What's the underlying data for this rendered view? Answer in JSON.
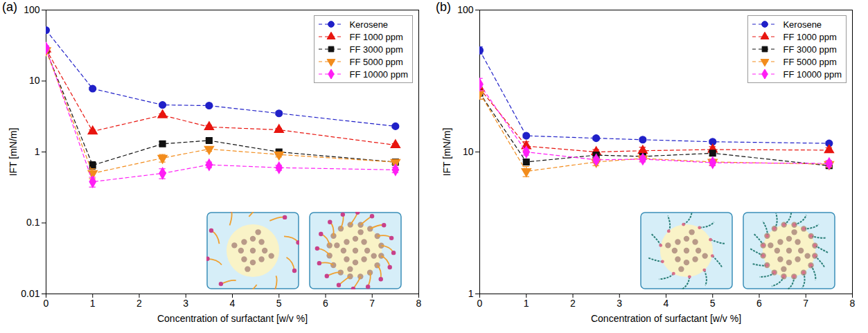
{
  "chart_data": [
    {
      "type": "line",
      "title": "(a)",
      "x_label": "Concentration of surfactant [w/v %]",
      "y_label": "IFT [mN/m]",
      "x": [
        0,
        1,
        2.5,
        3.5,
        5,
        7.5
      ],
      "xlim": [
        0,
        8
      ],
      "xticks": [
        0,
        1,
        2,
        3,
        4,
        5,
        6,
        7,
        8
      ],
      "ylim": [
        0.01,
        100
      ],
      "yticks": [
        0.01,
        0.1,
        1,
        10,
        100
      ],
      "log": "y",
      "grid": false,
      "legend": "upper right",
      "series": [
        {
          "name": "Kerosene",
          "color": "#2020c8",
          "marker": "circle",
          "line_style": "dashed",
          "values": [
            52,
            7.8,
            4.6,
            4.5,
            3.5,
            2.3
          ],
          "errors": [
            3,
            0.3,
            0.2,
            0.2,
            0.15,
            0.1
          ]
        },
        {
          "name": "FF 1000 ppm",
          "color": "#e8150f",
          "marker": "triangle",
          "line_style": "dashed",
          "values": [
            28,
            1.95,
            3.3,
            2.25,
            2.05,
            1.25
          ],
          "errors": [
            2.5,
            0.1,
            0.15,
            0.12,
            0.1,
            0.06
          ]
        },
        {
          "name": "FF 3000 ppm",
          "color": "#111111",
          "marker": "square",
          "line_style": "dashed",
          "values": [
            27,
            0.65,
            1.3,
            1.45,
            1.0,
            0.72
          ],
          "errors": [
            2.5,
            0.08,
            0.1,
            0.08,
            0.06,
            0.05
          ]
        },
        {
          "name": "FF 5000 ppm",
          "color": "#f28c1c",
          "marker": "triangle-down",
          "line_style": "dashed",
          "values": [
            27,
            0.5,
            0.82,
            1.1,
            0.92,
            0.72
          ],
          "errors": [
            2.5,
            0.08,
            0.1,
            0.08,
            0.07,
            0.05
          ]
        },
        {
          "name": "FF 10000 ppm",
          "color": "#ff1ef5",
          "marker": "diamond",
          "line_style": "dashed",
          "values": [
            29,
            0.38,
            0.5,
            0.66,
            0.6,
            0.56
          ],
          "errors": [
            2.5,
            0.06,
            0.08,
            0.06,
            0.05,
            0.05
          ]
        }
      ]
    },
    {
      "type": "line",
      "title": "(b)",
      "x_label": "Concentration of surfactant [w/v %]",
      "y_label": "IFT [mN/m]",
      "x": [
        0,
        1,
        2.5,
        3.5,
        5,
        7.5
      ],
      "xlim": [
        0,
        8
      ],
      "xticks": [
        0,
        1,
        2,
        3,
        4,
        5,
        6,
        7,
        8
      ],
      "ylim": [
        1,
        100
      ],
      "yticks": [
        1,
        10,
        100
      ],
      "log": "y",
      "grid": false,
      "legend": "upper right",
      "series": [
        {
          "name": "Kerosene",
          "color": "#2020c8",
          "marker": "circle",
          "line_style": "dashed",
          "values": [
            52,
            13,
            12.5,
            12.2,
            11.8,
            11.5
          ],
          "errors": [
            3,
            0.4,
            0.3,
            0.3,
            0.3,
            0.3
          ]
        },
        {
          "name": "FF 1000 ppm",
          "color": "#e8150f",
          "marker": "triangle",
          "line_style": "dashed",
          "values": [
            28,
            11,
            10,
            10.2,
            10.4,
            10.3
          ],
          "errors": [
            2.5,
            0.8,
            0.4,
            0.6,
            0.5,
            0.4
          ]
        },
        {
          "name": "FF 3000 ppm",
          "color": "#111111",
          "marker": "square",
          "line_style": "dashed",
          "values": [
            26,
            8.5,
            9.5,
            9.3,
            9.8,
            8.0
          ],
          "errors": [
            2.5,
            0.4,
            0.4,
            0.4,
            0.4,
            0.3
          ]
        },
        {
          "name": "FF 5000 ppm",
          "color": "#f28c1c",
          "marker": "triangle-down",
          "line_style": "dashed",
          "values": [
            26,
            7.3,
            8.5,
            9.0,
            8.5,
            8.2
          ],
          "errors": [
            2.5,
            0.6,
            0.5,
            0.4,
            0.4,
            0.4
          ]
        },
        {
          "name": "FF 10000 ppm",
          "color": "#ff1ef5",
          "marker": "diamond",
          "line_style": "dashed",
          "values": [
            30,
            10,
            8.8,
            8.9,
            8.4,
            8.3
          ],
          "errors": [
            3,
            0.5,
            0.4,
            0.4,
            0.4,
            0.4
          ]
        }
      ]
    }
  ]
}
